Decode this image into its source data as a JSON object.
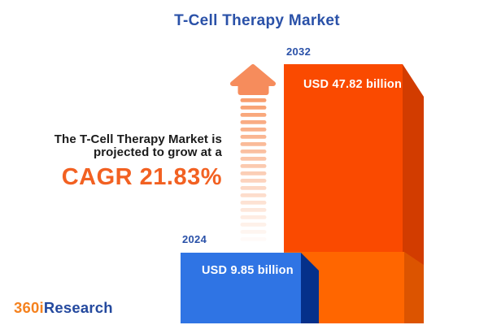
{
  "title": "T-Cell Therapy Market",
  "tagline": {
    "line1": "The T-Cell Therapy Market is",
    "line2": "projected to grow at a",
    "cagr": "CAGR 21.83%"
  },
  "chart_data": {
    "type": "bar",
    "title": "T-Cell Therapy Market",
    "categories": [
      "2024",
      "2032"
    ],
    "values": [
      9.85,
      47.82
    ],
    "unit": "USD billion",
    "value_labels": [
      "USD 9.85 billion",
      "USD 47.82 billion"
    ],
    "cagr_percent": 21.83,
    "legend": "none",
    "grid": false
  },
  "bars": {
    "b2024": {
      "year": "2024",
      "value_label": "USD 9.85 billion"
    },
    "b2032": {
      "year": "2032",
      "value_label": "USD 47.82 billion"
    }
  },
  "logo": {
    "part_orange": "360i",
    "part_blue": "Research"
  },
  "colors": {
    "title_blue": "#2A51A8",
    "text_dark": "#1B1B1B",
    "cagr_orange": "#F26122",
    "bar_2032_front": "#FA4A00",
    "bar_2032_side": "#D23C00",
    "base_block_front": "#FF6600",
    "base_block_side": "#DC5400",
    "bar_2024_front": "#2F74E4",
    "bar_2024_side": "#05308A",
    "arrow_head": "#F68C5C",
    "arrow_stripe": "#F89E6E",
    "logo_orange": "#F5821F",
    "logo_blue": "#24499E",
    "background": "#FFFFFF"
  }
}
